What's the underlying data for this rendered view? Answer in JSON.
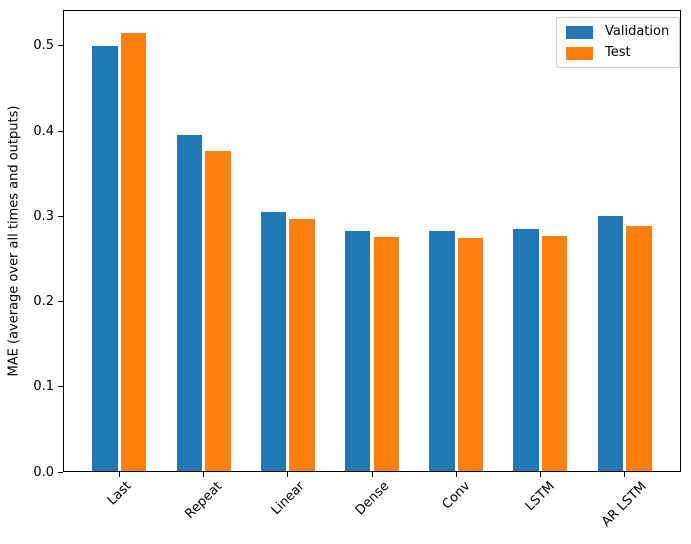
{
  "chart_data": {
    "type": "bar",
    "title": "",
    "categories": [
      "Last",
      "Repeat",
      "Linear",
      "Dense",
      "Conv",
      "LSTM",
      "AR LSTM"
    ],
    "series": [
      {
        "name": "Validation",
        "color": "#1f77b4",
        "values": [
          0.501,
          0.396,
          0.305,
          0.283,
          0.283,
          0.285,
          0.3
        ]
      },
      {
        "name": "Test",
        "color": "#ff7f0e",
        "values": [
          0.516,
          0.377,
          0.297,
          0.276,
          0.275,
          0.277,
          0.289
        ]
      }
    ],
    "xlabel": "",
    "ylabel": "MAE (average over all times and outputs)",
    "ylim": [
      0,
      0.542
    ],
    "yticks": [
      "0.0",
      "0.1",
      "0.2",
      "0.3",
      "0.4",
      "0.5"
    ],
    "grid": false,
    "x_tick_rotation": 45,
    "legend": {
      "position": "upper right",
      "entries": [
        "Validation",
        "Test"
      ]
    }
  },
  "colors": {
    "axis": "#000000",
    "legend_border": "#cccccc",
    "background": "#ffffff"
  }
}
